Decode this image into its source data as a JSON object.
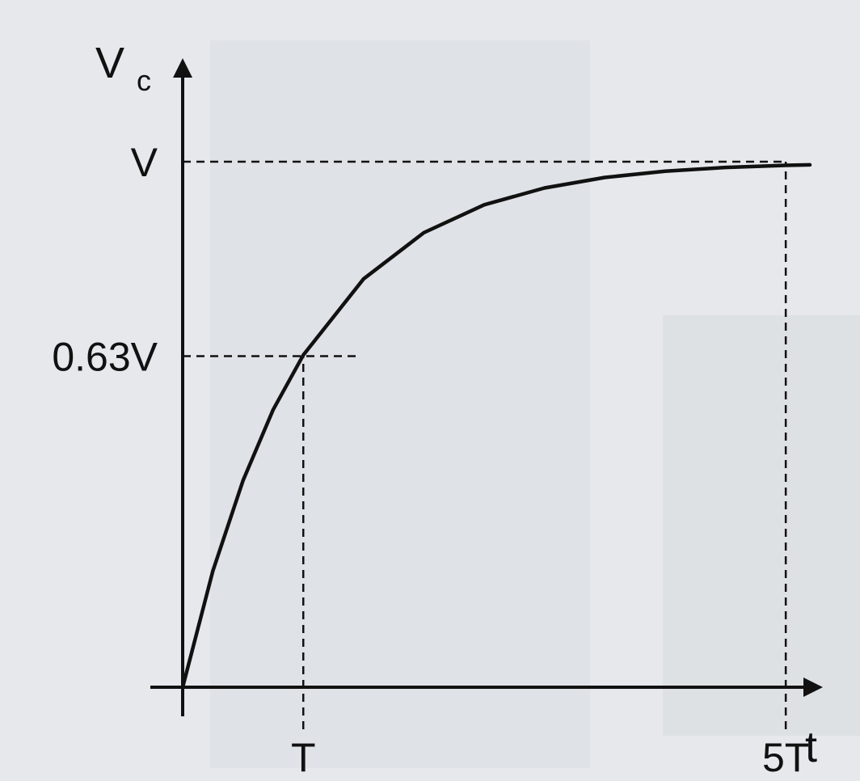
{
  "chart_data": {
    "type": "line",
    "title": "",
    "xlabel": "t",
    "ylabel": {
      "main": "V",
      "subscript": "c"
    },
    "x_ticks": [
      {
        "value": 1,
        "label": "T"
      },
      {
        "value": 5,
        "label": "5T"
      }
    ],
    "y_ticks": [
      {
        "value": 0.63,
        "label": "0.63V"
      },
      {
        "value": 1.0,
        "label": "V"
      }
    ],
    "xlim": [
      0,
      5.2
    ],
    "ylim": [
      0,
      1.0
    ],
    "series": [
      {
        "x": [
          0,
          0.25,
          0.5,
          0.75,
          1,
          1.5,
          2,
          2.5,
          3,
          3.5,
          4,
          4.5,
          5,
          5.2
        ],
        "values": [
          0,
          0.221,
          0.393,
          0.528,
          0.632,
          0.777,
          0.865,
          0.918,
          0.95,
          0.97,
          0.982,
          0.989,
          0.993,
          0.994
        ]
      }
    ],
    "guides": [
      {
        "type": "horizontal",
        "y": 0.63,
        "from_x": 0,
        "to_x": 1.45
      },
      {
        "type": "vertical",
        "x": 1,
        "from_y": -0.08,
        "to_y": 0.63
      },
      {
        "type": "horizontal",
        "y": 1.0,
        "from_x": 0,
        "to_x": 5
      },
      {
        "type": "vertical",
        "x": 5,
        "from_y": -0.08,
        "to_y": 1.0
      }
    ],
    "grid": false,
    "legend": "none"
  }
}
